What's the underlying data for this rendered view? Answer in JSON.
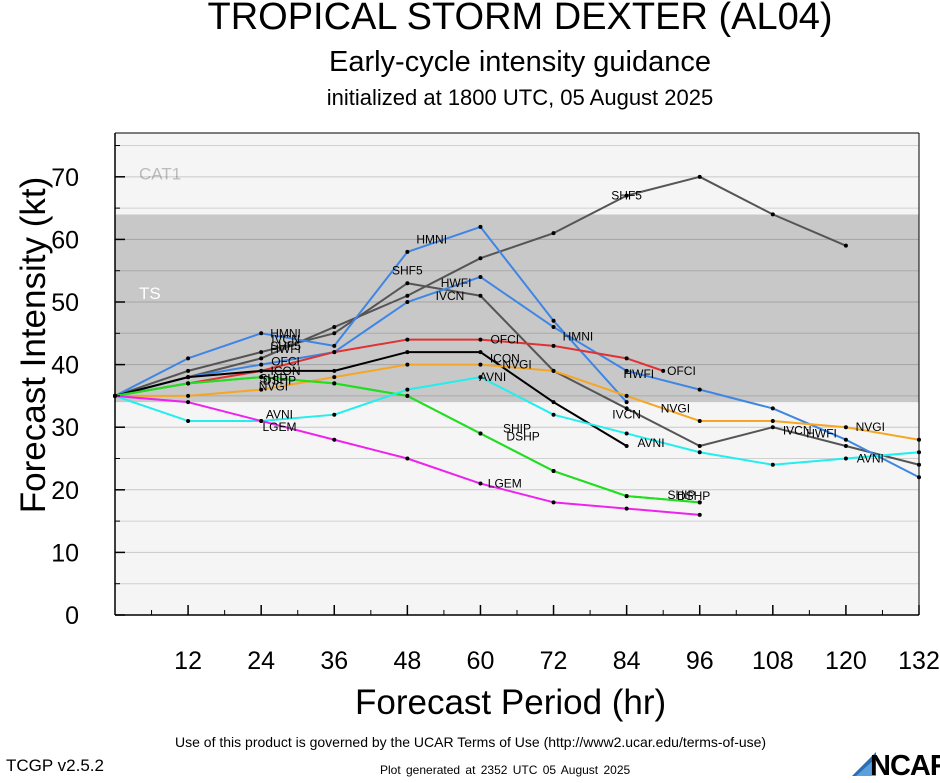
{
  "page": {
    "title": "TROPICAL STORM DEXTER (AL04)",
    "subtitle": "Early-cycle intensity guidance",
    "init_line": "initialized at 1800 UTC, 05 August 2025",
    "terms": "Use of this product is governed by the UCAR Terms of Use (http://www2.ucar.edu/terms-of-use)",
    "version": "TCGP v2.5.2",
    "generated": "Plot generated at 2352 UTC   05 August 2025",
    "logo_text": "NCAR"
  },
  "chart_data": {
    "type": "line",
    "title": "TROPICAL STORM DEXTER (AL04)",
    "xlabel": "Forecast Period (hr)",
    "ylabel": "Forecast Intensity (kt)",
    "xlim": [
      0,
      132
    ],
    "ylim": [
      0,
      77
    ],
    "xticks": [
      12,
      24,
      36,
      48,
      60,
      72,
      84,
      96,
      108,
      120,
      132
    ],
    "yticks": [
      0,
      10,
      20,
      30,
      40,
      50,
      60,
      70
    ],
    "grid": true,
    "bands": [
      {
        "name": "TS",
        "from": 34,
        "to": 64,
        "color": "#c8c8c8"
      },
      {
        "name": "CAT1",
        "from": 64,
        "to": 77,
        "color": "#f5f5f5"
      }
    ],
    "below_band_color": "#f5f5f5",
    "series": [
      {
        "name": "SHF5",
        "color": "#555555",
        "points": [
          [
            0,
            35
          ],
          [
            12,
            38
          ],
          [
            24,
            41
          ],
          [
            36,
            46
          ],
          [
            48,
            51
          ],
          [
            60,
            57
          ],
          [
            72,
            61
          ],
          [
            84,
            67
          ],
          [
            96,
            70
          ],
          [
            108,
            64
          ],
          [
            120,
            59
          ]
        ],
        "labels": [
          [
            28,
            43
          ],
          [
            48,
            55
          ],
          [
            84,
            67
          ]
        ]
      },
      {
        "name": "IVCN",
        "color": "#555555",
        "points": [
          [
            0,
            35
          ],
          [
            12,
            39
          ],
          [
            24,
            42
          ],
          [
            36,
            45
          ],
          [
            48,
            53
          ],
          [
            60,
            51
          ],
          [
            72,
            39
          ],
          [
            84,
            33
          ],
          [
            96,
            27
          ],
          [
            108,
            30
          ],
          [
            120,
            27
          ],
          [
            132,
            24
          ]
        ],
        "labels": [
          [
            28,
            44
          ],
          [
            55,
            51
          ],
          [
            84,
            32
          ],
          [
            112,
            29.5
          ]
        ]
      },
      {
        "name": "HWFI",
        "color": "#3f86e4",
        "points": [
          [
            0,
            35
          ],
          [
            12,
            38
          ],
          [
            24,
            40
          ],
          [
            36,
            42
          ],
          [
            48,
            50
          ],
          [
            60,
            54
          ],
          [
            72,
            46
          ],
          [
            84,
            39
          ],
          [
            96,
            36
          ],
          [
            108,
            33
          ],
          [
            120,
            28
          ],
          [
            132,
            22
          ]
        ],
        "labels": [
          [
            28,
            42.5
          ],
          [
            56,
            53
          ],
          [
            86,
            38.5
          ],
          [
            116,
            29
          ]
        ]
      },
      {
        "name": "HMNI",
        "color": "#3f86e4",
        "points": [
          [
            0,
            35
          ],
          [
            12,
            41
          ],
          [
            24,
            45
          ],
          [
            36,
            43
          ],
          [
            48,
            58
          ],
          [
            60,
            62
          ],
          [
            72,
            47
          ],
          [
            84,
            34
          ]
        ],
        "labels": [
          [
            28,
            45
          ],
          [
            52,
            60
          ],
          [
            76,
            44.5
          ]
        ]
      },
      {
        "name": "OFCI",
        "color": "#e03232",
        "points": [
          [
            0,
            35
          ],
          [
            12,
            37
          ],
          [
            24,
            39
          ],
          [
            36,
            42
          ],
          [
            48,
            44
          ],
          [
            60,
            44
          ],
          [
            72,
            43
          ],
          [
            84,
            41
          ],
          [
            90,
            39
          ]
        ],
        "labels": [
          [
            28,
            40.5
          ],
          [
            64,
            44
          ],
          [
            93,
            39
          ]
        ]
      },
      {
        "name": "ICON",
        "color": "#000000",
        "points": [
          [
            0,
            35
          ],
          [
            12,
            38
          ],
          [
            24,
            39
          ],
          [
            36,
            39
          ],
          [
            48,
            42
          ],
          [
            60,
            42
          ],
          [
            72,
            34
          ],
          [
            84,
            27
          ]
        ],
        "labels": [
          [
            28,
            39
          ],
          [
            64,
            41
          ]
        ]
      },
      {
        "name": "NVGI",
        "color": "#f5a623",
        "points": [
          [
            0,
            35
          ],
          [
            12,
            35
          ],
          [
            24,
            36
          ],
          [
            36,
            38
          ],
          [
            48,
            40
          ],
          [
            60,
            40
          ],
          [
            72,
            39
          ],
          [
            84,
            35
          ],
          [
            96,
            31
          ],
          [
            108,
            31
          ],
          [
            120,
            30
          ],
          [
            132,
            28
          ]
        ],
        "labels": [
          [
            26,
            36.5
          ],
          [
            66,
            40
          ],
          [
            92,
            33
          ],
          [
            124,
            30
          ]
        ]
      },
      {
        "name": "DSHP",
        "color": "#22dd22",
        "points": [
          [
            0,
            35
          ],
          [
            12,
            37
          ],
          [
            24,
            38
          ],
          [
            36,
            37
          ],
          [
            48,
            35
          ],
          [
            60,
            29
          ],
          [
            72,
            23
          ],
          [
            84,
            19
          ],
          [
            96,
            18
          ]
        ],
        "labels": [
          [
            27,
            37.5
          ],
          [
            67,
            28.5
          ],
          [
            95,
            19
          ]
        ]
      },
      {
        "name": "SHIP",
        "color": "#22dd22",
        "points": [
          [
            0,
            35
          ],
          [
            12,
            37
          ],
          [
            24,
            38
          ],
          [
            36,
            37
          ],
          [
            48,
            35
          ],
          [
            60,
            29
          ],
          [
            72,
            23
          ],
          [
            84,
            19
          ],
          [
            96,
            18
          ]
        ],
        "labels": [
          [
            26,
            37.8
          ],
          [
            66,
            29.8
          ],
          [
            93,
            19.2
          ]
        ]
      },
      {
        "name": "AVNI",
        "color": "#22eeee",
        "points": [
          [
            0,
            35
          ],
          [
            12,
            31
          ],
          [
            24,
            31
          ],
          [
            36,
            32
          ],
          [
            48,
            36
          ],
          [
            60,
            38
          ],
          [
            72,
            32
          ],
          [
            84,
            29
          ],
          [
            96,
            26
          ],
          [
            108,
            24
          ],
          [
            120,
            25
          ],
          [
            132,
            26
          ]
        ],
        "labels": [
          [
            27,
            32
          ],
          [
            62,
            38
          ],
          [
            88,
            27.5
          ],
          [
            124,
            25
          ]
        ]
      },
      {
        "name": "LGEM",
        "color": "#ee22ee",
        "points": [
          [
            0,
            35
          ],
          [
            12,
            34
          ],
          [
            24,
            31
          ],
          [
            36,
            28
          ],
          [
            48,
            25
          ],
          [
            60,
            21
          ],
          [
            72,
            18
          ],
          [
            84,
            17
          ],
          [
            96,
            16
          ]
        ],
        "labels": [
          [
            27,
            30
          ],
          [
            64,
            21
          ]
        ]
      }
    ]
  }
}
